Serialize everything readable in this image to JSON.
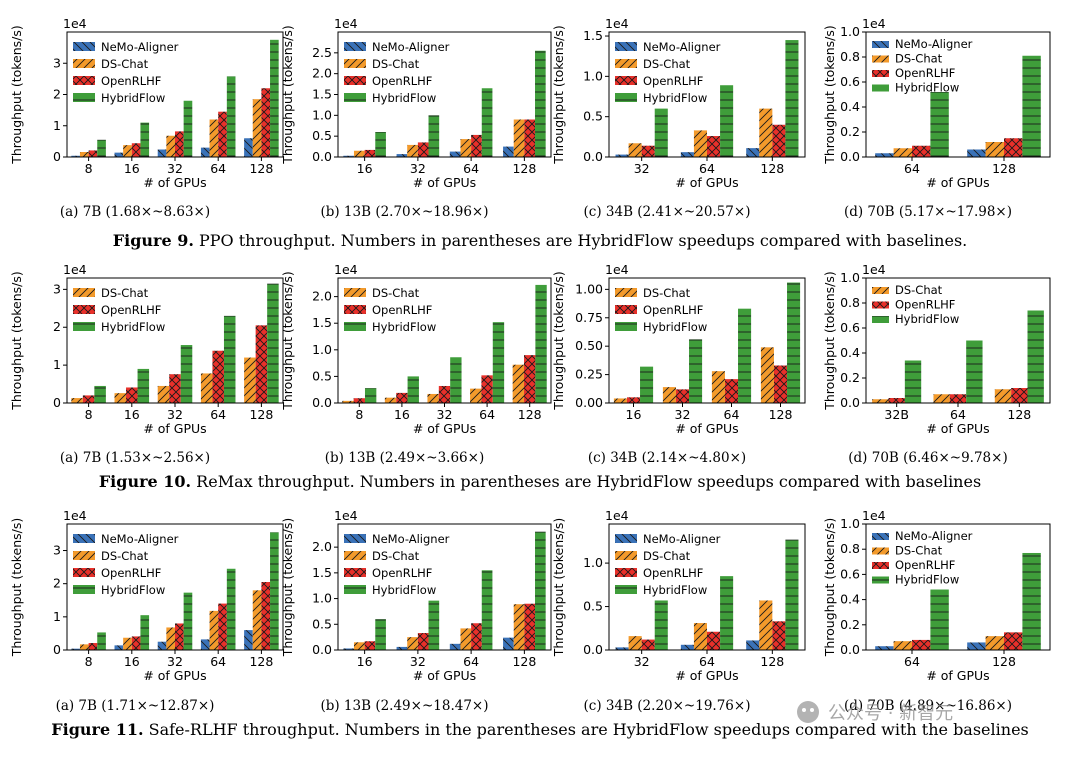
{
  "colors": {
    "NeMo-Aligner": "#3a72b8",
    "DS-Chat": "#f39a2b",
    "OpenRLHF": "#e8302a",
    "HybridFlow": "#3f9d3a"
  },
  "hatches": {
    "NeMo-Aligner": "back",
    "DS-Chat": "fwd",
    "OpenRLHF": "cross",
    "HybridFlow": "horiz"
  },
  "figures": [
    {
      "number": "Figure 9.",
      "caption": " PPO throughput. Numbers in parentheses are HybridFlow speedups compared with baselines."
    },
    {
      "number": "Figure 10.",
      "caption": " ReMax throughput. Numbers in parentheses are HybridFlow speedups compared with baselines"
    },
    {
      "number": "Figure 11.",
      "caption": " Safe-RLHF throughput. Numbers in the parentheses are HybridFlow speedups compared with the baselines"
    }
  ],
  "watermark": "公众号 · 新智元",
  "chart_data": [
    {
      "type": "bar",
      "subcaption": "(a)  7B (1.68×~8.63×)",
      "exponent": "1e4",
      "ylabel": "Throughput (tokens/s)",
      "xlabel": "# of GPUs",
      "categories": [
        "8",
        "16",
        "32",
        "64",
        "128"
      ],
      "ylim": [
        0,
        40000
      ],
      "yticks": [
        0,
        10000,
        20000,
        30000
      ],
      "yticklabels": [
        "0",
        "1",
        "2",
        "3"
      ],
      "series": [
        {
          "name": "NeMo-Aligner",
          "values": [
            400,
            1400,
            2400,
            3000,
            6000
          ]
        },
        {
          "name": "DS-Chat",
          "values": [
            1600,
            3800,
            6800,
            12000,
            18500
          ]
        },
        {
          "name": "OpenRLHF",
          "values": [
            2100,
            4400,
            8200,
            14500,
            22000
          ]
        },
        {
          "name": "HybridFlow",
          "values": [
            5500,
            11000,
            18000,
            25800,
            37500
          ]
        }
      ]
    },
    {
      "type": "bar",
      "subcaption": "(b)  13B (2.70×~18.96×)",
      "exponent": "1e4",
      "ylabel": "Throughput (tokens/s)",
      "xlabel": "# of GPUs",
      "categories": [
        "16",
        "32",
        "64",
        "128"
      ],
      "ylim": [
        0,
        30000
      ],
      "yticks": [
        0,
        5000,
        10000,
        15000,
        20000,
        25000
      ],
      "yticklabels": [
        "0.0",
        "0.5",
        "1.0",
        "1.5",
        "2.0",
        "2.5"
      ],
      "series": [
        {
          "name": "NeMo-Aligner",
          "values": [
            300,
            700,
            1300,
            2500
          ]
        },
        {
          "name": "DS-Chat",
          "values": [
            1500,
            2900,
            4300,
            9000
          ]
        },
        {
          "name": "OpenRLHF",
          "values": [
            1700,
            3500,
            5300,
            9000
          ]
        },
        {
          "name": "HybridFlow",
          "values": [
            6000,
            10000,
            16500,
            25500
          ]
        }
      ]
    },
    {
      "type": "bar",
      "subcaption": "(c)  34B (2.41×~20.57×)",
      "exponent": "1e4",
      "ylabel": "Throughput (tokens/s)",
      "xlabel": "# of GPUs",
      "categories": [
        "32",
        "64",
        "128"
      ],
      "ylim": [
        0,
        15500
      ],
      "yticks": [
        0,
        5000,
        10000,
        15000
      ],
      "yticklabels": [
        "0.0",
        "0.5",
        "1.0",
        "1.5"
      ],
      "series": [
        {
          "name": "NeMo-Aligner",
          "values": [
            300,
            600,
            1100
          ]
        },
        {
          "name": "DS-Chat",
          "values": [
            1700,
            3300,
            6000
          ]
        },
        {
          "name": "OpenRLHF",
          "values": [
            1400,
            2600,
            4000
          ]
        },
        {
          "name": "HybridFlow",
          "values": [
            6000,
            8900,
            14500
          ]
        }
      ]
    },
    {
      "type": "bar",
      "subcaption": "(d)  70B (5.17×~17.98×)",
      "exponent": "1e4",
      "ylabel": "Throughput (tokens/s)",
      "xlabel": "# of GPUs",
      "categories": [
        "64",
        "128"
      ],
      "ylim": [
        0,
        10000
      ],
      "yticks": [
        0,
        2000,
        4000,
        6000,
        8000,
        10000
      ],
      "yticklabels": [
        "0.0",
        "0.2",
        "0.4",
        "0.6",
        "0.8",
        "1.0"
      ],
      "series": [
        {
          "name": "NeMo-Aligner",
          "values": [
            300,
            600
          ]
        },
        {
          "name": "DS-Chat",
          "values": [
            700,
            1200
          ]
        },
        {
          "name": "OpenRLHF",
          "values": [
            900,
            1500
          ]
        },
        {
          "name": "HybridFlow",
          "values": [
            5200,
            8100
          ]
        }
      ]
    },
    {
      "type": "bar",
      "subcaption": "(a)  7B (1.53×~2.56×)",
      "exponent": "1e4",
      "ylabel": "Throughput (tokens/s)",
      "xlabel": "# of GPUs",
      "categories": [
        "8",
        "16",
        "32",
        "64",
        "128"
      ],
      "ylim": [
        0,
        33000
      ],
      "yticks": [
        0,
        10000,
        20000,
        30000
      ],
      "yticklabels": [
        "0",
        "1",
        "2",
        "3"
      ],
      "series": [
        {
          "name": "DS-Chat",
          "values": [
            1300,
            2600,
            4500,
            7800,
            12000
          ]
        },
        {
          "name": "OpenRLHF",
          "values": [
            2000,
            4100,
            7600,
            13800,
            20500
          ]
        },
        {
          "name": "HybridFlow",
          "values": [
            4500,
            9000,
            15300,
            23000,
            31500
          ]
        }
      ]
    },
    {
      "type": "bar",
      "subcaption": "(b)  13B (2.49×~3.66×)",
      "exponent": "1e4",
      "ylabel": "Throughput (tokens/s)",
      "xlabel": "# of GPUs",
      "categories": [
        "8",
        "16",
        "32",
        "64",
        "128"
      ],
      "ylim": [
        0,
        23500
      ],
      "yticks": [
        0,
        5000,
        10000,
        15000,
        20000
      ],
      "yticklabels": [
        "0.0",
        "0.5",
        "1.0",
        "1.5",
        "2.0"
      ],
      "series": [
        {
          "name": "DS-Chat",
          "values": [
            400,
            1000,
            1700,
            2700,
            7200
          ]
        },
        {
          "name": "OpenRLHF",
          "values": [
            900,
            1900,
            3200,
            5200,
            9000
          ]
        },
        {
          "name": "HybridFlow",
          "values": [
            2800,
            5000,
            8600,
            15200,
            22200
          ]
        }
      ]
    },
    {
      "type": "bar",
      "subcaption": "(c)  34B (2.14×~4.80×)",
      "exponent": "1e4",
      "ylabel": "Throughput (tokens/s)",
      "xlabel": "# of GPUs",
      "categories": [
        "16",
        "32",
        "64",
        "128"
      ],
      "ylim": [
        0,
        11000
      ],
      "yticks": [
        0,
        2500,
        5000,
        7500,
        10000
      ],
      "yticklabels": [
        "0.00",
        "0.25",
        "0.50",
        "0.75",
        "1.00"
      ],
      "series": [
        {
          "name": "DS-Chat",
          "values": [
            400,
            1400,
            2800,
            4900
          ]
        },
        {
          "name": "OpenRLHF",
          "values": [
            500,
            1200,
            2100,
            3300
          ]
        },
        {
          "name": "HybridFlow",
          "values": [
            3200,
            5600,
            8300,
            10600
          ]
        }
      ]
    },
    {
      "type": "bar",
      "subcaption": "(d)  70B (6.46×~9.78×)",
      "exponent": "1e4",
      "ylabel": "Throughput (tokens/s)",
      "xlabel": "# of GPUs",
      "categories": [
        "32B",
        "64",
        "128"
      ],
      "ylim": [
        0,
        10000
      ],
      "yticks": [
        0,
        2000,
        4000,
        6000,
        8000,
        10000
      ],
      "yticklabels": [
        "0.0",
        "0.2",
        "0.4",
        "0.6",
        "0.8",
        "1.0"
      ],
      "series": [
        {
          "name": "DS-Chat",
          "values": [
            300,
            700,
            1100
          ]
        },
        {
          "name": "OpenRLHF",
          "values": [
            400,
            700,
            1200
          ]
        },
        {
          "name": "HybridFlow",
          "values": [
            3400,
            5000,
            7400
          ]
        }
      ]
    },
    {
      "type": "bar",
      "subcaption": "(a)  7B (1.71×~12.87×)",
      "exponent": "1e4",
      "ylabel": "Throughput (tokens/s)",
      "xlabel": "# of GPUs",
      "categories": [
        "8",
        "16",
        "32",
        "64",
        "128"
      ],
      "ylim": [
        0,
        38000
      ],
      "yticks": [
        0,
        10000,
        20000,
        30000
      ],
      "yticklabels": [
        "0",
        "1",
        "2",
        "3"
      ],
      "series": [
        {
          "name": "NeMo-Aligner",
          "values": [
            400,
            1400,
            2500,
            3200,
            6000
          ]
        },
        {
          "name": "DS-Chat",
          "values": [
            1700,
            3700,
            6800,
            11800,
            18000
          ]
        },
        {
          "name": "OpenRLHF",
          "values": [
            2100,
            4100,
            8000,
            14000,
            20500
          ]
        },
        {
          "name": "HybridFlow",
          "values": [
            5300,
            10500,
            17300,
            24500,
            35500
          ]
        }
      ]
    },
    {
      "type": "bar",
      "subcaption": "(b)  13B (2.49×~18.47×)",
      "exponent": "1e4",
      "ylabel": "Throughput (tokens/s)",
      "xlabel": "# of GPUs",
      "categories": [
        "16",
        "32",
        "64",
        "128"
      ],
      "ylim": [
        0,
        24500
      ],
      "yticks": [
        0,
        5000,
        10000,
        15000,
        20000
      ],
      "yticklabels": [
        "0.0",
        "0.5",
        "1.0",
        "1.5",
        "2.0"
      ],
      "series": [
        {
          "name": "NeMo-Aligner",
          "values": [
            300,
            600,
            1200,
            2400
          ]
        },
        {
          "name": "DS-Chat",
          "values": [
            1500,
            2500,
            4200,
            8900
          ]
        },
        {
          "name": "OpenRLHF",
          "values": [
            1700,
            3300,
            5200,
            9000
          ]
        },
        {
          "name": "HybridFlow",
          "values": [
            6000,
            9600,
            15500,
            23000
          ]
        }
      ]
    },
    {
      "type": "bar",
      "subcaption": "(c)  34B (2.20×~19.76×)",
      "exponent": "1e4",
      "ylabel": "Throughput (tokens/s)",
      "xlabel": "# of GPUs",
      "categories": [
        "32",
        "64",
        "128"
      ],
      "ylim": [
        0,
        14500
      ],
      "yticks": [
        0,
        5000,
        10000
      ],
      "yticklabels": [
        "0.0",
        "0.5",
        "1.0"
      ],
      "series": [
        {
          "name": "NeMo-Aligner",
          "values": [
            300,
            600,
            1100
          ]
        },
        {
          "name": "DS-Chat",
          "values": [
            1600,
            3100,
            5700
          ]
        },
        {
          "name": "OpenRLHF",
          "values": [
            1200,
            2100,
            3300
          ]
        },
        {
          "name": "HybridFlow",
          "values": [
            5700,
            8500,
            12700
          ]
        }
      ]
    },
    {
      "type": "bar",
      "subcaption": "(d)  70B (4.89×~16.86×)",
      "exponent": "1e4",
      "ylabel": "Throughput (tokens/s)",
      "xlabel": "# of GPUs",
      "categories": [
        "64",
        "128"
      ],
      "ylim": [
        0,
        10000
      ],
      "yticks": [
        0,
        2000,
        4000,
        6000,
        8000,
        10000
      ],
      "yticklabels": [
        "0.0",
        "0.2",
        "0.4",
        "0.6",
        "0.8",
        "1.0"
      ],
      "series": [
        {
          "name": "NeMo-Aligner",
          "values": [
            300,
            600
          ]
        },
        {
          "name": "DS-Chat",
          "values": [
            700,
            1100
          ]
        },
        {
          "name": "OpenRLHF",
          "values": [
            800,
            1400
          ]
        },
        {
          "name": "HybridFlow",
          "values": [
            4800,
            7700
          ]
        }
      ]
    }
  ]
}
